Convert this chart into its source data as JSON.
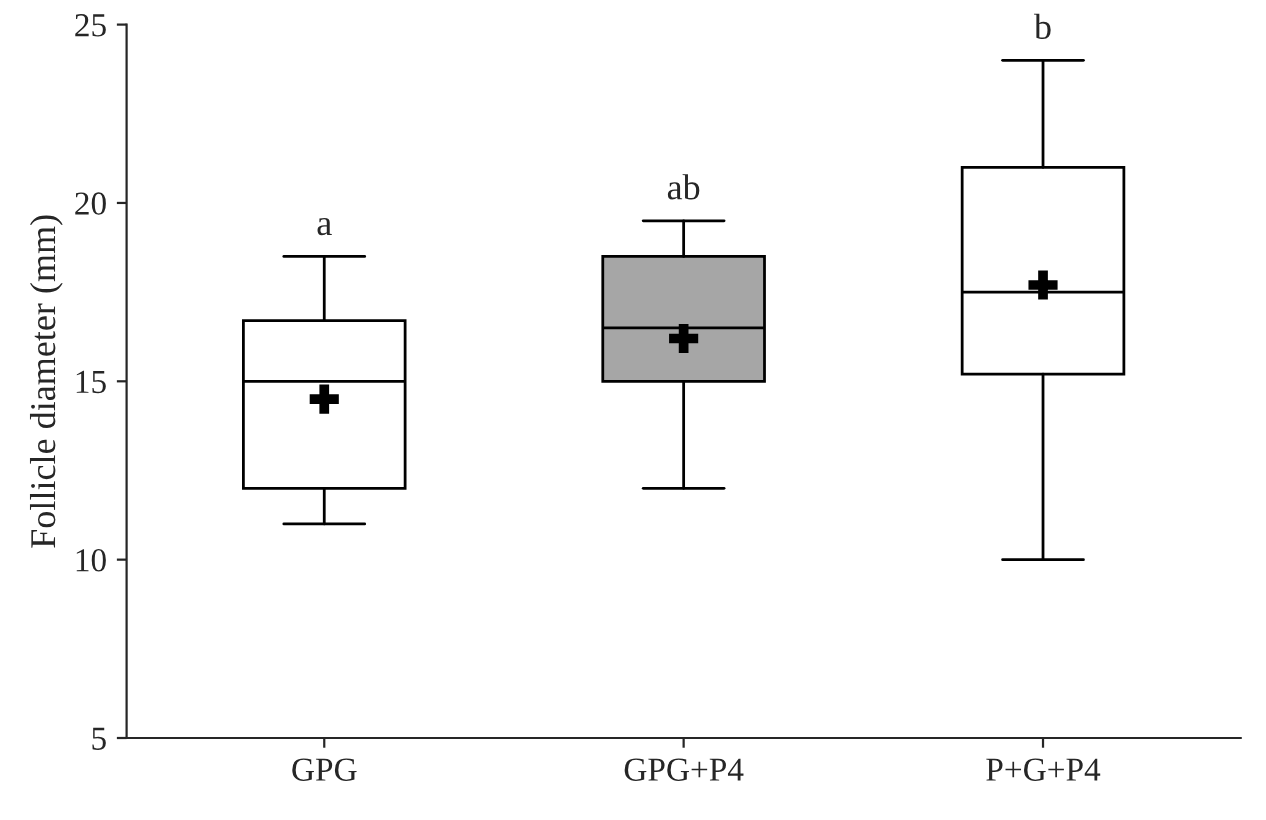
{
  "chart_data": {
    "type": "box",
    "ylabel": "Follicle diameter (mm)",
    "categories": [
      "GPG",
      "GPG+P4",
      "P+G+P4"
    ],
    "boxes": [
      {
        "low": 11,
        "q1": 12,
        "median": 15,
        "q3": 16.7,
        "high": 18.5,
        "mean": 14.5
      },
      {
        "low": 12,
        "q1": 15,
        "median": 16.5,
        "q3": 18.5,
        "high": 19.5,
        "mean": 16.2
      },
      {
        "low": 10,
        "q1": 15.2,
        "median": 17.5,
        "q3": 21,
        "high": 24,
        "mean": 17.7
      }
    ],
    "colors": [
      "#ffffff",
      "#a6a6a6",
      "#ffffff"
    ],
    "ylim": [
      5,
      25
    ],
    "yticks": [
      5,
      10,
      15,
      20,
      25
    ],
    "grid": false,
    "annotations": [
      "a",
      "ab",
      "b"
    ]
  }
}
